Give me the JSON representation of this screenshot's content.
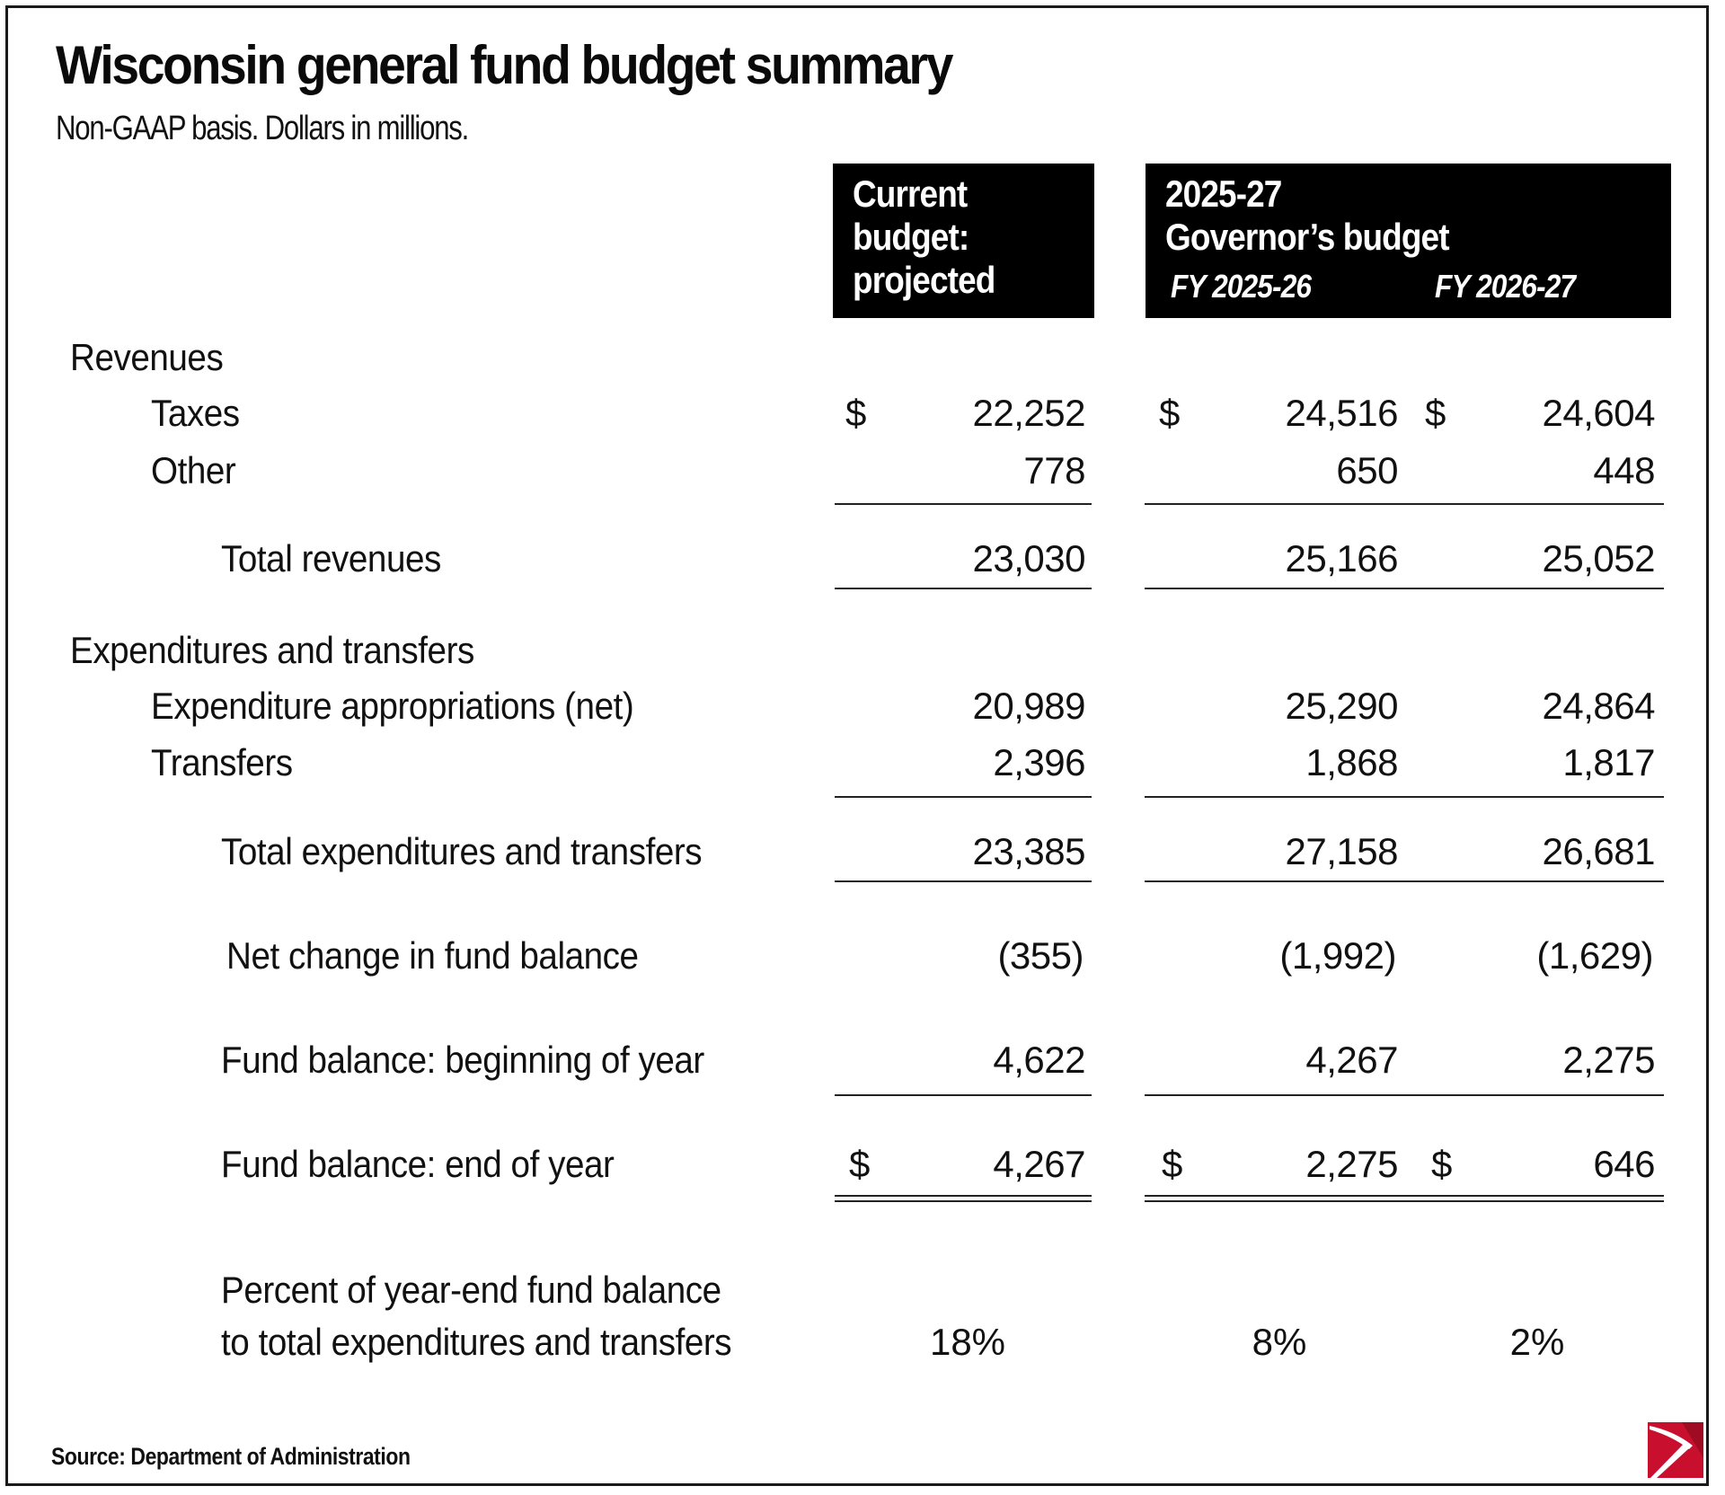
{
  "header": {
    "title": "Wisconsin general fund budget summary",
    "subtitle": "Non-GAAP basis. Dollars in millions."
  },
  "columns": {
    "current": {
      "line1": "Current",
      "line2": "budget:",
      "line3": "projected"
    },
    "governor": {
      "line1": "2025-27",
      "line2": "Governor’s budget",
      "fy1": "FY 2025-26",
      "fy2": "FY 2026-27"
    }
  },
  "currency_symbol": "$",
  "sections": {
    "revenues": "Revenues",
    "expenditures": "Expenditures and transfers"
  },
  "rows": {
    "taxes": {
      "label": "Taxes",
      "values": [
        "22,252",
        "24,516",
        "24,604"
      ]
    },
    "other": {
      "label": "Other",
      "values": [
        "778",
        "650",
        "448"
      ]
    },
    "total_revenues": {
      "label": "Total revenues",
      "values": [
        "23,030",
        "25,166",
        "25,052"
      ]
    },
    "expenditure_appropriations": {
      "label": "Expenditure appropriations (net)",
      "values": [
        "20,989",
        "25,290",
        "24,864"
      ]
    },
    "transfers": {
      "label": "Transfers",
      "values": [
        "2,396",
        "1,868",
        "1,817"
      ]
    },
    "total_expenditures": {
      "label": "Total expenditures and transfers",
      "values": [
        "23,385",
        "27,158",
        "26,681"
      ]
    },
    "net_change": {
      "label": "Net change in fund balance",
      "values": [
        "(355)",
        "(1,992)",
        "(1,629)"
      ]
    },
    "fund_begin": {
      "label": "Fund balance: beginning of year",
      "values": [
        "4,622",
        "4,267",
        "2,275"
      ]
    },
    "fund_end": {
      "label": "Fund balance: end of year",
      "values": [
        "4,267",
        "2,275",
        "646"
      ]
    },
    "percent": {
      "label_line1": "Percent of year-end fund balance",
      "label_line2": "to total expenditures and transfers",
      "values": [
        "18%",
        "8%",
        "2%"
      ]
    }
  },
  "footer": {
    "source": "Source: Department of Administration"
  },
  "colors": {
    "header_bg": "#000000",
    "header_text": "#ffffff",
    "logo_red": "#c8102e"
  }
}
